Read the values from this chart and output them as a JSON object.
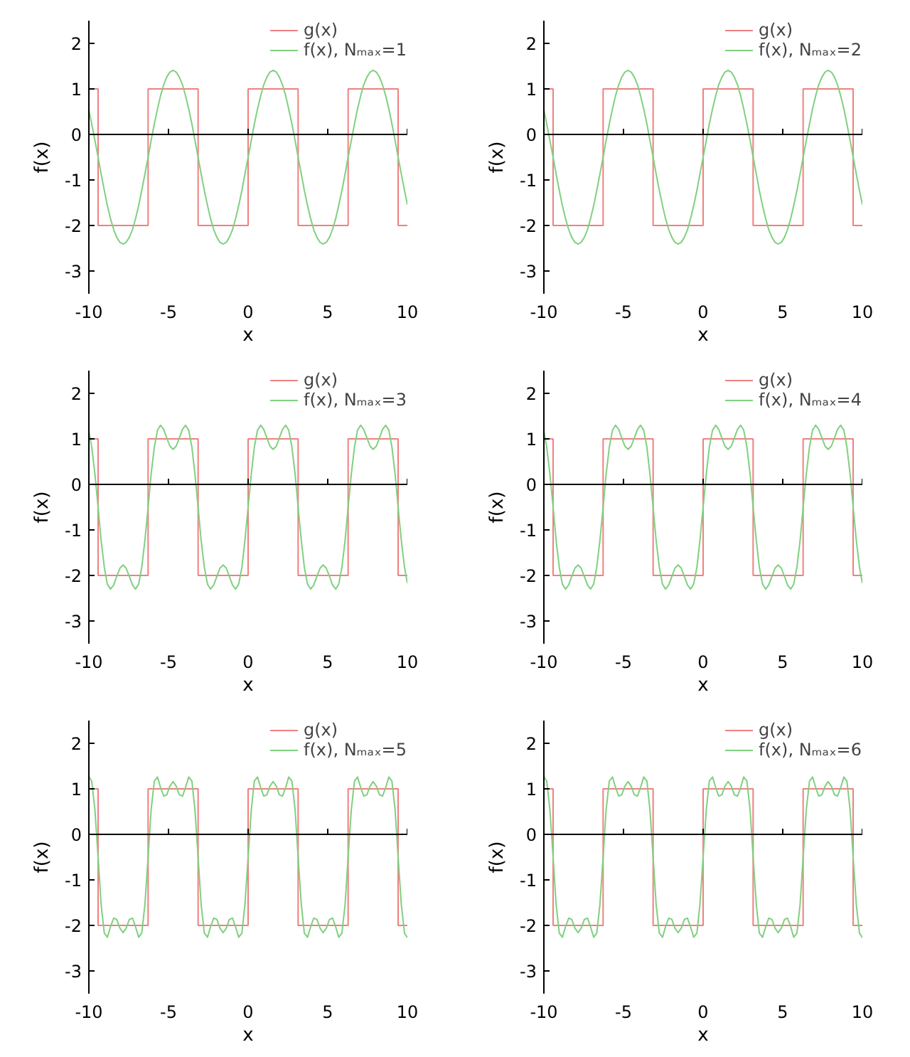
{
  "chart_data": [
    {
      "type": "line",
      "xlabel": "x",
      "ylabel": "f(x)",
      "xlim": [
        -10,
        10
      ],
      "ylim": [
        -3.5,
        2.5
      ],
      "xticks": [
        -10,
        -5,
        0,
        5,
        10
      ],
      "yticks": [
        -3,
        -2,
        -1,
        0,
        1,
        2
      ],
      "grid": false,
      "legend": "top right",
      "ref_lines": [
        {
          "axis": "y",
          "value": 0,
          "color": "#000000"
        }
      ],
      "x": [
        -10,
        -9.82,
        -9.62,
        -9.42,
        -9.23,
        -9.03,
        -8.84,
        -8.64,
        -8.44,
        -8.25,
        -8.05,
        -7.85,
        -7.66,
        -7.46,
        -7.26,
        -7.07,
        -6.87,
        -6.68,
        -6.48,
        -6.28,
        -6.09,
        -5.89,
        -5.69,
        -5.5,
        -5.3,
        -5.11,
        -4.91,
        -4.71,
        -4.52,
        -4.32,
        -4.12,
        -3.93,
        -3.73,
        -3.53,
        -3.34,
        -3.14,
        -2.95,
        -2.75,
        -2.55,
        -2.36,
        -2.16,
        -1.96,
        -1.77,
        -1.57,
        -1.37,
        -1.18,
        -0.98,
        -0.79,
        -0.59,
        -0.39,
        -0.2,
        0,
        0.2,
        0.39,
        0.59,
        0.79,
        0.98,
        1.18,
        1.37,
        1.57,
        1.77,
        1.96,
        2.16,
        2.36,
        2.55,
        2.75,
        2.95,
        3.14,
        3.34,
        3.53,
        3.73,
        3.93,
        4.12,
        4.32,
        4.52,
        4.71,
        4.91,
        5.11,
        5.3,
        5.5,
        5.69,
        5.89,
        6.09,
        6.28,
        6.48,
        6.68,
        6.87,
        7.07,
        7.26,
        7.46,
        7.66,
        7.85,
        8.05,
        8.25,
        8.44,
        8.64,
        8.84,
        9.03,
        9.23,
        9.42,
        9.62,
        9.82,
        10
      ],
      "series": [
        {
          "name": "g(x)",
          "type": "step",
          "color": "#f08080",
          "x": [
            -10,
            -9.42,
            -6.28,
            -3.14,
            0,
            3.14,
            6.28,
            9.42,
            10
          ],
          "values": [
            1,
            -2,
            1,
            -2,
            1,
            -2,
            1,
            -2,
            -2
          ]
        },
        {
          "name": "f(x), Nₘₐₓ=1",
          "type": "line",
          "color": "#80d080",
          "values": [
            0.54,
            0.23,
            -0.13,
            -0.5,
            -0.87,
            -1.23,
            -1.56,
            -1.85,
            -2.09,
            -2.26,
            -2.37,
            -2.41,
            -2.37,
            -2.26,
            -2.09,
            -1.85,
            -1.56,
            -1.23,
            -0.87,
            -0.5,
            -0.13,
            0.23,
            0.56,
            0.85,
            1.09,
            1.26,
            1.37,
            1.41,
            1.37,
            1.26,
            1.09,
            0.85,
            0.56,
            0.23,
            -0.13,
            -0.5,
            -0.87,
            -1.23,
            -1.56,
            -1.85,
            -2.09,
            -2.26,
            -2.37,
            -2.41,
            -2.37,
            -2.26,
            -2.09,
            -1.85,
            -1.56,
            -1.23,
            -0.87,
            -0.5,
            -0.13,
            0.23,
            0.56,
            0.85,
            1.09,
            1.26,
            1.37,
            1.41,
            1.37,
            1.26,
            1.09,
            0.85,
            0.56,
            0.23,
            -0.13,
            -0.5,
            -0.87,
            -1.23,
            -1.56,
            -1.85,
            -2.09,
            -2.26,
            -2.37,
            -2.41,
            -2.37,
            -2.26,
            -2.09,
            -1.85,
            -1.56,
            -1.23,
            -0.87,
            -0.5,
            -0.13,
            0.23,
            0.56,
            0.85,
            1.09,
            1.26,
            1.37,
            1.41,
            1.37,
            1.26,
            1.09,
            0.85,
            0.56,
            0.23,
            -0.13,
            -0.5,
            -0.87,
            -1.23,
            -1.54
          ]
        }
      ]
    },
    {
      "type": "line",
      "xlabel": "x",
      "ylabel": "f(x)",
      "xlim": [
        -10,
        10
      ],
      "ylim": [
        -3.5,
        2.5
      ],
      "xticks": [
        -10,
        -5,
        0,
        5,
        10
      ],
      "yticks": [
        -3,
        -2,
        -1,
        0,
        1,
        2
      ],
      "grid": false,
      "legend": "top right",
      "ref_lines": [
        {
          "axis": "y",
          "value": 0,
          "color": "#000000"
        }
      ],
      "x": [
        -10,
        -9.82,
        -9.62,
        -9.42,
        -9.23,
        -9.03,
        -8.84,
        -8.64,
        -8.44,
        -8.25,
        -8.05,
        -7.85,
        -7.66,
        -7.46,
        -7.26,
        -7.07,
        -6.87,
        -6.68,
        -6.48,
        -6.28,
        -6.09,
        -5.89,
        -5.69,
        -5.5,
        -5.3,
        -5.11,
        -4.91,
        -4.71,
        -4.52,
        -4.32,
        -4.12,
        -3.93,
        -3.73,
        -3.53,
        -3.34,
        -3.14,
        -2.95,
        -2.75,
        -2.55,
        -2.36,
        -2.16,
        -1.96,
        -1.77,
        -1.57,
        -1.37,
        -1.18,
        -0.98,
        -0.79,
        -0.59,
        -0.39,
        -0.2,
        0,
        0.2,
        0.39,
        0.59,
        0.79,
        0.98,
        1.18,
        1.37,
        1.57,
        1.77,
        1.96,
        2.16,
        2.36,
        2.55,
        2.75,
        2.95,
        3.14,
        3.34,
        3.53,
        3.73,
        3.93,
        4.12,
        4.32,
        4.52,
        4.71,
        4.91,
        5.11,
        5.3,
        5.5,
        5.69,
        5.89,
        6.09,
        6.28,
        6.48,
        6.68,
        6.87,
        7.07,
        7.26,
        7.46,
        7.66,
        7.85,
        8.05,
        8.25,
        8.44,
        8.64,
        8.84,
        9.03,
        9.23,
        9.42,
        9.62,
        9.82,
        10
      ],
      "series": [
        {
          "name": "g(x)",
          "type": "step",
          "color": "#f08080",
          "x": [
            -10,
            -9.42,
            -6.28,
            -3.14,
            0,
            3.14,
            6.28,
            9.42,
            10
          ],
          "values": [
            1,
            -2,
            1,
            -2,
            1,
            -2,
            1,
            -2,
            -2
          ]
        },
        {
          "name": "f(x), Nₘₐₓ=2",
          "type": "line",
          "color": "#80d080",
          "values": [
            0.54,
            0.23,
            -0.13,
            -0.5,
            -0.87,
            -1.23,
            -1.56,
            -1.85,
            -2.09,
            -2.26,
            -2.37,
            -2.41,
            -2.37,
            -2.26,
            -2.09,
            -1.85,
            -1.56,
            -1.23,
            -0.87,
            -0.5,
            -0.13,
            0.23,
            0.56,
            0.85,
            1.09,
            1.26,
            1.37,
            1.41,
            1.37,
            1.26,
            1.09,
            0.85,
            0.56,
            0.23,
            -0.13,
            -0.5,
            -0.87,
            -1.23,
            -1.56,
            -1.85,
            -2.09,
            -2.26,
            -2.37,
            -2.41,
            -2.37,
            -2.26,
            -2.09,
            -1.85,
            -1.56,
            -1.23,
            -0.87,
            -0.5,
            -0.13,
            0.23,
            0.56,
            0.85,
            1.09,
            1.26,
            1.37,
            1.41,
            1.37,
            1.26,
            1.09,
            0.85,
            0.56,
            0.23,
            -0.13,
            -0.5,
            -0.87,
            -1.23,
            -1.56,
            -1.85,
            -2.09,
            -2.26,
            -2.37,
            -2.41,
            -2.37,
            -2.26,
            -2.09,
            -1.85,
            -1.56,
            -1.23,
            -0.87,
            -0.5,
            -0.13,
            0.23,
            0.56,
            0.85,
            1.09,
            1.26,
            1.37,
            1.41,
            1.37,
            1.26,
            1.09,
            0.85,
            0.56,
            0.23,
            -0.13,
            -0.5,
            -0.87,
            -1.23,
            -1.54
          ]
        }
      ]
    },
    {
      "type": "line",
      "xlabel": "x",
      "ylabel": "f(x)",
      "xlim": [
        -10,
        10
      ],
      "ylim": [
        -3.5,
        2.5
      ],
      "xticks": [
        -10,
        -5,
        0,
        5,
        10
      ],
      "yticks": [
        -3,
        -2,
        -1,
        0,
        1,
        2
      ],
      "grid": false,
      "legend": "top right",
      "ref_lines": [
        {
          "axis": "y",
          "value": 0,
          "color": "#000000"
        }
      ],
      "x": [
        -10,
        -9.82,
        -9.62,
        -9.42,
        -9.23,
        -9.03,
        -8.84,
        -8.64,
        -8.44,
        -8.25,
        -8.05,
        -7.85,
        -7.66,
        -7.46,
        -7.26,
        -7.07,
        -6.87,
        -6.68,
        -6.48,
        -6.28,
        -6.09,
        -5.89,
        -5.69,
        -5.5,
        -5.3,
        -5.11,
        -4.91,
        -4.71,
        -4.52,
        -4.32,
        -4.12,
        -3.93,
        -3.73,
        -3.53,
        -3.34,
        -3.14,
        -2.95,
        -2.75,
        -2.55,
        -2.36,
        -2.16,
        -1.96,
        -1.77,
        -1.57,
        -1.37,
        -1.18,
        -0.98,
        -0.79,
        -0.59,
        -0.39,
        -0.2,
        0,
        0.2,
        0.39,
        0.59,
        0.79,
        0.98,
        1.18,
        1.37,
        1.57,
        1.77,
        1.96,
        2.16,
        2.36,
        2.55,
        2.75,
        2.95,
        3.14,
        3.34,
        3.53,
        3.73,
        3.93,
        4.12,
        4.32,
        4.52,
        4.71,
        4.91,
        5.11,
        5.3,
        5.5,
        5.69,
        5.89,
        6.09,
        6.28,
        6.48,
        6.68,
        6.87,
        7.07,
        7.26,
        7.46,
        7.66,
        7.85,
        8.05,
        8.25,
        8.44,
        8.64,
        8.84,
        9.03,
        9.23,
        9.42,
        9.62,
        9.82,
        10
      ],
      "series": [
        {
          "name": "g(x)",
          "type": "step",
          "color": "#f08080",
          "x": [
            -10,
            -9.42,
            -6.28,
            -3.14,
            0,
            3.14,
            6.28,
            9.42,
            10
          ],
          "values": [
            1,
            -2,
            1,
            -2,
            1,
            -2,
            1,
            -2,
            -2
          ]
        },
        {
          "name": "f(x), Nₘₐₓ=3",
          "type": "line",
          "color": "#80d080",
          "values": [
            1.17,
            0.82,
            0.23,
            -0.5,
            -1.23,
            -1.82,
            -2.19,
            -2.3,
            -2.21,
            -2.02,
            -1.84,
            -1.77,
            -1.84,
            -2.02,
            -2.21,
            -2.3,
            -2.19,
            -1.82,
            -1.23,
            -0.5,
            0.23,
            0.82,
            1.19,
            1.3,
            1.21,
            1.02,
            0.84,
            0.77,
            0.84,
            1.02,
            1.21,
            1.3,
            1.19,
            0.82,
            0.23,
            -0.5,
            -1.23,
            -1.82,
            -2.19,
            -2.3,
            -2.21,
            -2.02,
            -1.84,
            -1.77,
            -1.84,
            -2.02,
            -2.21,
            -2.3,
            -2.19,
            -1.82,
            -1.23,
            -0.5,
            0.23,
            0.82,
            1.19,
            1.3,
            1.21,
            1.02,
            0.84,
            0.77,
            0.84,
            1.02,
            1.21,
            1.3,
            1.19,
            0.82,
            0.23,
            -0.5,
            -1.23,
            -1.82,
            -2.19,
            -2.3,
            -2.21,
            -2.02,
            -1.84,
            -1.77,
            -1.84,
            -2.02,
            -2.21,
            -2.3,
            -2.19,
            -1.82,
            -1.23,
            -0.5,
            0.23,
            0.82,
            1.19,
            1.3,
            1.21,
            1.02,
            0.84,
            0.77,
            0.84,
            1.02,
            1.21,
            1.3,
            1.19,
            0.82,
            0.23,
            -0.5,
            -1.23,
            -1.82,
            -2.17
          ]
        }
      ]
    },
    {
      "type": "line",
      "xlabel": "x",
      "ylabel": "f(x)",
      "xlim": [
        -10,
        10
      ],
      "ylim": [
        -3.5,
        2.5
      ],
      "xticks": [
        -10,
        -5,
        0,
        5,
        10
      ],
      "yticks": [
        -3,
        -2,
        -1,
        0,
        1,
        2
      ],
      "grid": false,
      "legend": "top right",
      "ref_lines": [
        {
          "axis": "y",
          "value": 0,
          "color": "#000000"
        }
      ],
      "x": [
        -10,
        -9.82,
        -9.62,
        -9.42,
        -9.23,
        -9.03,
        -8.84,
        -8.64,
        -8.44,
        -8.25,
        -8.05,
        -7.85,
        -7.66,
        -7.46,
        -7.26,
        -7.07,
        -6.87,
        -6.68,
        -6.48,
        -6.28,
        -6.09,
        -5.89,
        -5.69,
        -5.5,
        -5.3,
        -5.11,
        -4.91,
        -4.71,
        -4.52,
        -4.32,
        -4.12,
        -3.93,
        -3.73,
        -3.53,
        -3.34,
        -3.14,
        -2.95,
        -2.75,
        -2.55,
        -2.36,
        -2.16,
        -1.96,
        -1.77,
        -1.57,
        -1.37,
        -1.18,
        -0.98,
        -0.79,
        -0.59,
        -0.39,
        -0.2,
        0,
        0.2,
        0.39,
        0.59,
        0.79,
        0.98,
        1.18,
        1.37,
        1.57,
        1.77,
        1.96,
        2.16,
        2.36,
        2.55,
        2.75,
        2.95,
        3.14,
        3.34,
        3.53,
        3.73,
        3.93,
        4.12,
        4.32,
        4.52,
        4.71,
        4.91,
        5.11,
        5.3,
        5.5,
        5.69,
        5.89,
        6.09,
        6.28,
        6.48,
        6.68,
        6.87,
        7.07,
        7.26,
        7.46,
        7.66,
        7.85,
        8.05,
        8.25,
        8.44,
        8.64,
        8.84,
        9.03,
        9.23,
        9.42,
        9.62,
        9.82,
        10
      ],
      "series": [
        {
          "name": "g(x)",
          "type": "step",
          "color": "#f08080",
          "x": [
            -10,
            -9.42,
            -6.28,
            -3.14,
            0,
            3.14,
            6.28,
            9.42,
            10
          ],
          "values": [
            1,
            -2,
            1,
            -2,
            1,
            -2,
            1,
            -2,
            -2
          ]
        },
        {
          "name": "f(x), Nₘₐₓ=4",
          "type": "line",
          "color": "#80d080",
          "values": [
            1.17,
            0.82,
            0.23,
            -0.5,
            -1.23,
            -1.82,
            -2.19,
            -2.3,
            -2.21,
            -2.02,
            -1.84,
            -1.77,
            -1.84,
            -2.02,
            -2.21,
            -2.3,
            -2.19,
            -1.82,
            -1.23,
            -0.5,
            0.23,
            0.82,
            1.19,
            1.3,
            1.21,
            1.02,
            0.84,
            0.77,
            0.84,
            1.02,
            1.21,
            1.3,
            1.19,
            0.82,
            0.23,
            -0.5,
            -1.23,
            -1.82,
            -2.19,
            -2.3,
            -2.21,
            -2.02,
            -1.84,
            -1.77,
            -1.84,
            -2.02,
            -2.21,
            -2.3,
            -2.19,
            -1.82,
            -1.23,
            -0.5,
            0.23,
            0.82,
            1.19,
            1.3,
            1.21,
            1.02,
            0.84,
            0.77,
            0.84,
            1.02,
            1.21,
            1.3,
            1.19,
            0.82,
            0.23,
            -0.5,
            -1.23,
            -1.82,
            -2.19,
            -2.3,
            -2.21,
            -2.02,
            -1.84,
            -1.77,
            -1.84,
            -2.02,
            -2.21,
            -2.3,
            -2.19,
            -1.82,
            -1.23,
            -0.5,
            0.23,
            0.82,
            1.19,
            1.3,
            1.21,
            1.02,
            0.84,
            0.77,
            0.84,
            1.02,
            1.21,
            1.3,
            1.19,
            0.82,
            0.23,
            -0.5,
            -1.23,
            -1.82,
            -2.17
          ]
        }
      ]
    },
    {
      "type": "line",
      "xlabel": "x",
      "ylabel": "f(x)",
      "xlim": [
        -10,
        10
      ],
      "ylim": [
        -3.5,
        2.5
      ],
      "xticks": [
        -10,
        -5,
        0,
        5,
        10
      ],
      "yticks": [
        -3,
        -2,
        -1,
        0,
        1,
        2
      ],
      "grid": false,
      "legend": "top right",
      "ref_lines": [
        {
          "axis": "y",
          "value": 0,
          "color": "#000000"
        }
      ],
      "x": [
        -10,
        -9.82,
        -9.62,
        -9.42,
        -9.23,
        -9.03,
        -8.84,
        -8.64,
        -8.44,
        -8.25,
        -8.05,
        -7.85,
        -7.66,
        -7.46,
        -7.26,
        -7.07,
        -6.87,
        -6.68,
        -6.48,
        -6.28,
        -6.09,
        -5.89,
        -5.69,
        -5.5,
        -5.3,
        -5.11,
        -4.91,
        -4.71,
        -4.52,
        -4.32,
        -4.12,
        -3.93,
        -3.73,
        -3.53,
        -3.34,
        -3.14,
        -2.95,
        -2.75,
        -2.55,
        -2.36,
        -2.16,
        -1.96,
        -1.77,
        -1.57,
        -1.37,
        -1.18,
        -0.98,
        -0.79,
        -0.59,
        -0.39,
        -0.2,
        0,
        0.2,
        0.39,
        0.59,
        0.79,
        0.98,
        1.18,
        1.37,
        1.57,
        1.77,
        1.96,
        2.16,
        2.36,
        2.55,
        2.75,
        2.95,
        3.14,
        3.34,
        3.53,
        3.73,
        3.93,
        4.12,
        4.32,
        4.52,
        4.71,
        4.91,
        5.11,
        5.3,
        5.5,
        5.69,
        5.89,
        6.09,
        6.28,
        6.48,
        6.68,
        6.87,
        7.07,
        7.26,
        7.46,
        7.66,
        7.85,
        8.05,
        8.25,
        8.44,
        8.64,
        8.84,
        9.03,
        9.23,
        9.42,
        9.62,
        9.82,
        10
      ],
      "series": [
        {
          "name": "g(x)",
          "type": "step",
          "color": "#f08080",
          "x": [
            -10,
            -9.42,
            -6.28,
            -3.14,
            0,
            3.14,
            6.28,
            9.42,
            10
          ],
          "values": [
            1,
            -2,
            1,
            -2,
            1,
            -2,
            1,
            -2,
            -2
          ]
        },
        {
          "name": "f(x), Nₘₐₓ=5",
          "type": "line",
          "color": "#80d080",
          "values": [
            1.27,
            1.17,
            0.54,
            -0.5,
            -1.54,
            -2.17,
            -2.26,
            -2.03,
            -1.84,
            -1.87,
            -2.06,
            -2.16,
            -2.06,
            -1.87,
            -1.84,
            -2.03,
            -2.26,
            -2.17,
            -1.54,
            -0.5,
            0.54,
            1.17,
            1.26,
            1.03,
            0.84,
            0.87,
            1.06,
            1.16,
            1.06,
            0.87,
            0.84,
            1.03,
            1.26,
            1.17,
            0.54,
            -0.5,
            -1.54,
            -2.17,
            -2.26,
            -2.03,
            -1.84,
            -1.87,
            -2.06,
            -2.16,
            -2.06,
            -1.87,
            -1.84,
            -2.03,
            -2.26,
            -2.17,
            -1.54,
            -0.5,
            0.54,
            1.17,
            1.26,
            1.03,
            0.84,
            0.87,
            1.06,
            1.16,
            1.06,
            0.87,
            0.84,
            1.03,
            1.26,
            1.17,
            0.54,
            -0.5,
            -1.54,
            -2.17,
            -2.26,
            -2.03,
            -1.84,
            -1.87,
            -2.06,
            -2.16,
            -2.06,
            -1.87,
            -1.84,
            -2.03,
            -2.26,
            -2.17,
            -1.54,
            -0.5,
            0.54,
            1.17,
            1.26,
            1.03,
            0.84,
            0.87,
            1.06,
            1.16,
            1.06,
            0.87,
            0.84,
            1.03,
            1.26,
            1.17,
            0.54,
            -0.5,
            -1.54,
            -2.17,
            -2.27
          ]
        }
      ]
    },
    {
      "type": "line",
      "xlabel": "x",
      "ylabel": "f(x)",
      "xlim": [
        -10,
        10
      ],
      "ylim": [
        -3.5,
        2.5
      ],
      "xticks": [
        -10,
        -5,
        0,
        5,
        10
      ],
      "yticks": [
        -3,
        -2,
        -1,
        0,
        1,
        2
      ],
      "grid": false,
      "legend": "top right",
      "ref_lines": [
        {
          "axis": "y",
          "value": 0,
          "color": "#000000"
        }
      ],
      "x": [
        -10,
        -9.82,
        -9.62,
        -9.42,
        -9.23,
        -9.03,
        -8.84,
        -8.64,
        -8.44,
        -8.25,
        -8.05,
        -7.85,
        -7.66,
        -7.46,
        -7.26,
        -7.07,
        -6.87,
        -6.68,
        -6.48,
        -6.28,
        -6.09,
        -5.89,
        -5.69,
        -5.5,
        -5.3,
        -5.11,
        -4.91,
        -4.71,
        -4.52,
        -4.32,
        -4.12,
        -3.93,
        -3.73,
        -3.53,
        -3.34,
        -3.14,
        -2.95,
        -2.75,
        -2.55,
        -2.36,
        -2.16,
        -1.96,
        -1.77,
        -1.57,
        -1.37,
        -1.18,
        -0.98,
        -0.79,
        -0.59,
        -0.39,
        -0.2,
        0,
        0.2,
        0.39,
        0.59,
        0.79,
        0.98,
        1.18,
        1.37,
        1.57,
        1.77,
        1.96,
        2.16,
        2.36,
        2.55,
        2.75,
        2.95,
        3.14,
        3.34,
        3.53,
        3.73,
        3.93,
        4.12,
        4.32,
        4.52,
        4.71,
        4.91,
        5.11,
        5.3,
        5.5,
        5.69,
        5.89,
        6.09,
        6.28,
        6.48,
        6.68,
        6.87,
        7.07,
        7.26,
        7.46,
        7.66,
        7.85,
        8.05,
        8.25,
        8.44,
        8.64,
        8.84,
        9.03,
        9.23,
        9.42,
        9.62,
        9.82,
        10
      ],
      "series": [
        {
          "name": "g(x)",
          "type": "step",
          "color": "#f08080",
          "x": [
            -10,
            -9.42,
            -6.28,
            -3.14,
            0,
            3.14,
            6.28,
            9.42,
            10
          ],
          "values": [
            1,
            -2,
            1,
            -2,
            1,
            -2,
            1,
            -2,
            -2
          ]
        },
        {
          "name": "f(x), Nₘₐₓ=6",
          "type": "line",
          "color": "#80d080",
          "values": [
            1.27,
            1.17,
            0.54,
            -0.5,
            -1.54,
            -2.17,
            -2.26,
            -2.03,
            -1.84,
            -1.87,
            -2.06,
            -2.16,
            -2.06,
            -1.87,
            -1.84,
            -2.03,
            -2.26,
            -2.17,
            -1.54,
            -0.5,
            0.54,
            1.17,
            1.26,
            1.03,
            0.84,
            0.87,
            1.06,
            1.16,
            1.06,
            0.87,
            0.84,
            1.03,
            1.26,
            1.17,
            0.54,
            -0.5,
            -1.54,
            -2.17,
            -2.26,
            -2.03,
            -1.84,
            -1.87,
            -2.06,
            -2.16,
            -2.06,
            -1.87,
            -1.84,
            -2.03,
            -2.26,
            -2.17,
            -1.54,
            -0.5,
            0.54,
            1.17,
            1.26,
            1.03,
            0.84,
            0.87,
            1.06,
            1.16,
            1.06,
            0.87,
            0.84,
            1.03,
            1.26,
            1.17,
            0.54,
            -0.5,
            -1.54,
            -2.17,
            -2.26,
            -2.03,
            -1.84,
            -1.87,
            -2.06,
            -2.16,
            -2.06,
            -1.87,
            -1.84,
            -2.03,
            -2.26,
            -2.17,
            -1.54,
            -0.5,
            0.54,
            1.17,
            1.26,
            1.03,
            0.84,
            0.87,
            1.06,
            1.16,
            1.06,
            0.87,
            0.84,
            1.03,
            1.26,
            1.17,
            0.54,
            -0.5,
            -1.54,
            -2.17,
            -2.27
          ]
        }
      ]
    }
  ]
}
